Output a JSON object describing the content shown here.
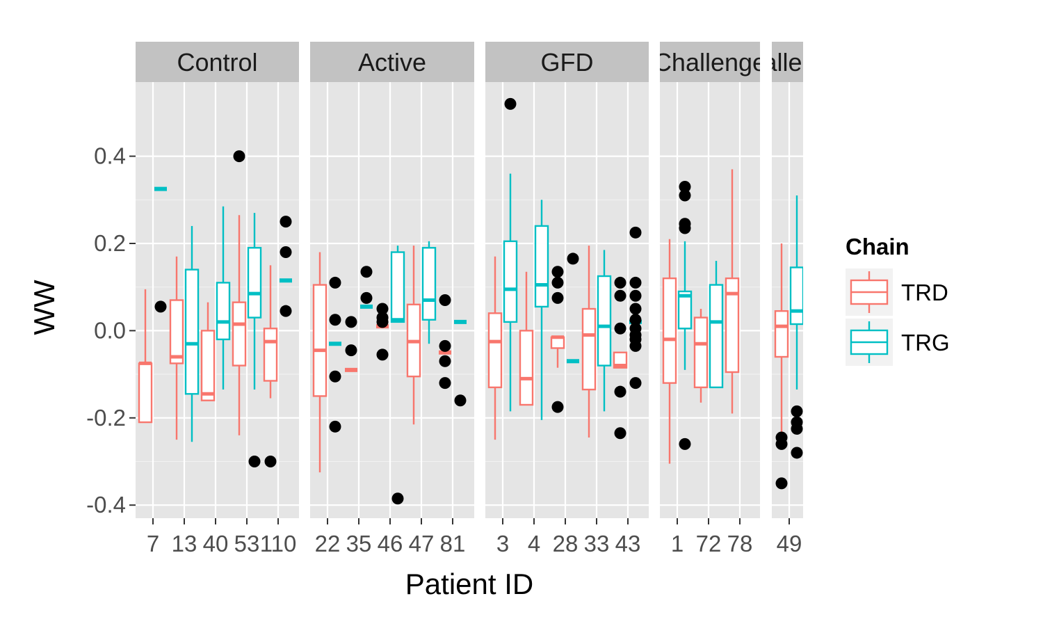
{
  "chart_data": {
    "type": "boxplot",
    "xlabel": "Patient ID",
    "ylabel": "WW",
    "ylim": [
      -0.43,
      0.57
    ],
    "y_ticks": [
      -0.4,
      -0.2,
      0.0,
      0.2,
      0.4
    ],
    "y_tick_labels": [
      "-0.4",
      "-0.2",
      "0.0",
      "0.2",
      "0.4"
    ],
    "grid": true,
    "legend": {
      "title": "Chain",
      "placement": "right",
      "entries": [
        {
          "name": "TRD",
          "color": "#f8766d"
        },
        {
          "name": "TRG",
          "color": "#00bfc4"
        }
      ]
    },
    "facets": [
      {
        "label": "Control",
        "categories": [
          "7",
          "13",
          "40",
          "53",
          "110"
        ],
        "boxes": [
          {
            "cat": 0,
            "chain": "TRD",
            "lower": -0.07,
            "q1": -0.21,
            "median": -0.075,
            "q3": -0.075,
            "upper": 0.095,
            "outliers": []
          },
          {
            "cat": 0,
            "chain": "TRG",
            "lower": 0.325,
            "q1": 0.325,
            "median": 0.325,
            "q3": 0.325,
            "upper": 0.325,
            "outliers": [
              0.055
            ]
          },
          {
            "cat": 1,
            "chain": "TRD",
            "lower": -0.25,
            "q1": -0.075,
            "median": -0.06,
            "q3": 0.07,
            "upper": 0.17,
            "outliers": []
          },
          {
            "cat": 1,
            "chain": "TRG",
            "lower": -0.255,
            "q1": -0.145,
            "median": -0.03,
            "q3": 0.14,
            "upper": 0.24,
            "outliers": []
          },
          {
            "cat": 2,
            "chain": "TRD",
            "lower": -0.16,
            "q1": -0.16,
            "median": -0.145,
            "q3": 0.0,
            "upper": 0.065,
            "outliers": []
          },
          {
            "cat": 2,
            "chain": "TRG",
            "lower": -0.135,
            "q1": -0.02,
            "median": 0.02,
            "q3": 0.11,
            "upper": 0.285,
            "outliers": []
          },
          {
            "cat": 3,
            "chain": "TRD",
            "lower": -0.24,
            "q1": -0.08,
            "median": 0.015,
            "q3": 0.065,
            "upper": 0.265,
            "outliers": [
              0.4
            ]
          },
          {
            "cat": 3,
            "chain": "TRG",
            "lower": -0.135,
            "q1": 0.03,
            "median": 0.085,
            "q3": 0.19,
            "upper": 0.27,
            "outliers": [
              -0.3
            ]
          },
          {
            "cat": 4,
            "chain": "TRD",
            "lower": -0.155,
            "q1": -0.115,
            "median": -0.025,
            "q3": 0.005,
            "upper": 0.15,
            "outliers": [
              -0.3
            ]
          },
          {
            "cat": 4,
            "chain": "TRG",
            "lower": 0.115,
            "q1": 0.115,
            "median": 0.115,
            "q3": 0.115,
            "upper": 0.115,
            "outliers": [
              0.25,
              0.18,
              0.045
            ]
          }
        ]
      },
      {
        "label": "Active",
        "categories": [
          "22",
          "35",
          "46",
          "47",
          "81"
        ],
        "boxes": [
          {
            "cat": 0,
            "chain": "TRD",
            "lower": -0.325,
            "q1": -0.15,
            "median": -0.045,
            "q3": 0.105,
            "upper": 0.18,
            "outliers": []
          },
          {
            "cat": 0,
            "chain": "TRG",
            "lower": -0.03,
            "q1": -0.03,
            "median": -0.03,
            "q3": -0.03,
            "upper": -0.03,
            "outliers": [
              0.11,
              0.025,
              -0.105,
              -0.22
            ]
          },
          {
            "cat": 1,
            "chain": "TRD",
            "lower": -0.09,
            "q1": -0.09,
            "median": -0.09,
            "q3": -0.09,
            "upper": -0.09,
            "outliers": [
              0.02,
              -0.045
            ]
          },
          {
            "cat": 1,
            "chain": "TRG",
            "lower": 0.055,
            "q1": 0.055,
            "median": 0.055,
            "q3": 0.055,
            "upper": 0.055,
            "outliers": [
              0.135,
              0.075
            ]
          },
          {
            "cat": 2,
            "chain": "TRD",
            "lower": 0.01,
            "q1": 0.01,
            "median": 0.01,
            "q3": 0.01,
            "upper": 0.01,
            "outliers": [
              0.05,
              0.03,
              0.02,
              -0.055
            ]
          },
          {
            "cat": 2,
            "chain": "TRG",
            "lower": 0.02,
            "q1": 0.02,
            "median": 0.025,
            "q3": 0.18,
            "upper": 0.195,
            "outliers": [
              -0.385
            ]
          },
          {
            "cat": 3,
            "chain": "TRD",
            "lower": -0.215,
            "q1": -0.105,
            "median": -0.025,
            "q3": 0.06,
            "upper": 0.195,
            "outliers": []
          },
          {
            "cat": 3,
            "chain": "TRG",
            "lower": -0.03,
            "q1": 0.025,
            "median": 0.07,
            "q3": 0.19,
            "upper": 0.205,
            "outliers": []
          },
          {
            "cat": 4,
            "chain": "TRD",
            "lower": -0.05,
            "q1": -0.05,
            "median": -0.05,
            "q3": -0.05,
            "upper": -0.05,
            "outliers": [
              0.07,
              -0.035,
              -0.07,
              -0.12
            ]
          },
          {
            "cat": 4,
            "chain": "TRG",
            "lower": 0.02,
            "q1": 0.02,
            "median": 0.02,
            "q3": 0.02,
            "upper": 0.02,
            "outliers": [
              -0.16
            ]
          }
        ]
      },
      {
        "label": "GFD",
        "categories": [
          "3",
          "4",
          "28",
          "33",
          "43"
        ],
        "boxes": [
          {
            "cat": 0,
            "chain": "TRD",
            "lower": -0.25,
            "q1": -0.13,
            "median": -0.025,
            "q3": 0.04,
            "upper": 0.17,
            "outliers": []
          },
          {
            "cat": 0,
            "chain": "TRG",
            "lower": -0.185,
            "q1": 0.02,
            "median": 0.095,
            "q3": 0.205,
            "upper": 0.36,
            "outliers": [
              0.52
            ]
          },
          {
            "cat": 1,
            "chain": "TRD",
            "lower": -0.17,
            "q1": -0.17,
            "median": -0.11,
            "q3": 0.0,
            "upper": 0.135,
            "outliers": []
          },
          {
            "cat": 1,
            "chain": "TRG",
            "lower": -0.205,
            "q1": 0.055,
            "median": 0.105,
            "q3": 0.24,
            "upper": 0.3,
            "outliers": []
          },
          {
            "cat": 2,
            "chain": "TRD",
            "lower": -0.085,
            "q1": -0.04,
            "median": -0.015,
            "q3": -0.015,
            "upper": -0.015,
            "outliers": [
              0.135,
              0.11,
              0.075,
              -0.175
            ]
          },
          {
            "cat": 2,
            "chain": "TRG",
            "lower": -0.07,
            "q1": -0.07,
            "median": -0.07,
            "q3": -0.07,
            "upper": -0.07,
            "outliers": [
              0.165
            ]
          },
          {
            "cat": 3,
            "chain": "TRD",
            "lower": -0.245,
            "q1": -0.135,
            "median": -0.01,
            "q3": 0.05,
            "upper": 0.195,
            "outliers": []
          },
          {
            "cat": 3,
            "chain": "TRG",
            "lower": -0.185,
            "q1": -0.08,
            "median": 0.01,
            "q3": 0.125,
            "upper": 0.185,
            "outliers": []
          },
          {
            "cat": 4,
            "chain": "TRD",
            "lower": -0.085,
            "q1": -0.085,
            "median": -0.08,
            "q3": -0.05,
            "upper": -0.05,
            "outliers": [
              0.11,
              0.08,
              0.005,
              -0.14,
              -0.235
            ]
          },
          {
            "cat": 4,
            "chain": "TRG",
            "lower": 0.02,
            "q1": 0.02,
            "median": 0.02,
            "q3": 0.02,
            "upper": 0.02,
            "outliers": [
              0.225,
              0.11,
              0.08,
              0.05,
              0.025,
              0.005,
              -0.01,
              -0.02,
              -0.035,
              -0.12
            ]
          }
        ]
      },
      {
        "label": "Challenge",
        "categories": [
          "1",
          "72",
          "78"
        ],
        "boxes": [
          {
            "cat": 0,
            "chain": "TRD",
            "lower": -0.305,
            "q1": -0.12,
            "median": -0.02,
            "q3": 0.12,
            "upper": 0.21,
            "outliers": []
          },
          {
            "cat": 0,
            "chain": "TRG",
            "lower": -0.09,
            "q1": 0.005,
            "median": 0.08,
            "q3": 0.09,
            "upper": 0.205,
            "outliers": [
              0.33,
              0.31,
              0.245,
              0.235,
              -0.26
            ]
          },
          {
            "cat": 1,
            "chain": "TRD",
            "lower": -0.165,
            "q1": -0.13,
            "median": -0.03,
            "q3": 0.03,
            "upper": 0.05,
            "outliers": []
          },
          {
            "cat": 1,
            "chain": "TRG",
            "lower": -0.13,
            "q1": -0.13,
            "median": 0.02,
            "q3": 0.105,
            "upper": 0.16,
            "outliers": []
          },
          {
            "cat": 2,
            "chain": "TRD",
            "lower": -0.19,
            "q1": -0.095,
            "median": 0.085,
            "q3": 0.12,
            "upper": 0.37,
            "outliers": []
          }
        ]
      },
      {
        "label": "Challenge",
        "categories": [
          "49"
        ],
        "boxes": [
          {
            "cat": 0,
            "chain": "TRD",
            "lower": -0.24,
            "q1": -0.06,
            "median": 0.01,
            "q3": 0.045,
            "upper": 0.2,
            "outliers": [
              -0.245,
              -0.26,
              -0.35
            ]
          },
          {
            "cat": 0,
            "chain": "TRG",
            "lower": -0.135,
            "q1": 0.015,
            "median": 0.045,
            "q3": 0.145,
            "upper": 0.31,
            "outliers": [
              -0.185,
              -0.21,
              -0.225,
              -0.28
            ]
          }
        ]
      }
    ]
  }
}
